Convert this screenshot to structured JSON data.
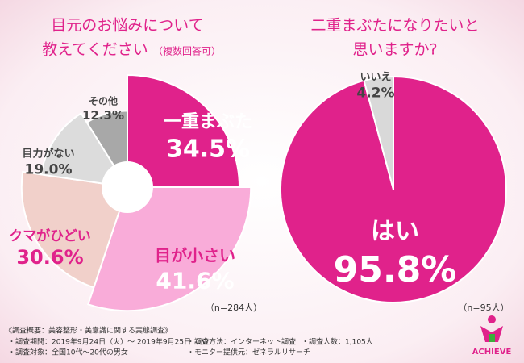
{
  "chart_data": [
    {
      "type": "rose",
      "title": [
        "目元のお悩みについて",
        "教えてください"
      ],
      "subtitle": "（複数回答可）",
      "categories": [
        "一重まぶた",
        "目が小さい",
        "クマがひどい",
        "目力がない",
        "その他"
      ],
      "values": [
        34.5,
        41.6,
        30.6,
        19.0,
        12.3
      ],
      "value_labels": [
        "34.5%",
        "41.6%",
        "30.6%",
        "19.0%",
        "12.3%"
      ],
      "colors": [
        "#e0228b",
        "#f9acd9",
        "#f1d0ca",
        "#dcdcdc",
        "#a8a8a8"
      ],
      "note": "（n=284人）"
    },
    {
      "type": "pie",
      "title": [
        "二重まぶたになりたいと",
        "思いますか?"
      ],
      "categories": [
        "はい",
        "いいえ"
      ],
      "values": [
        95.8,
        4.2
      ],
      "value_labels": [
        "95.8%",
        "4.2%"
      ],
      "colors": [
        "#e0228b",
        "#d9d9d9"
      ],
      "note": "（n=95人）"
    }
  ],
  "footer": {
    "heading": "《調査概要：美容整形・美意識に関する実態調査》",
    "items": [
      "・調査期間：2019年9月24日（火）～ 2019年9月25日（水）",
      "・調査方法：インターネット調査",
      "・調査人数：1,105人",
      "・調査対象：全国10代～20代の男女",
      "・モニター提供元：ゼネラルリサーチ"
    ],
    "logo": "ACHIEVE"
  }
}
